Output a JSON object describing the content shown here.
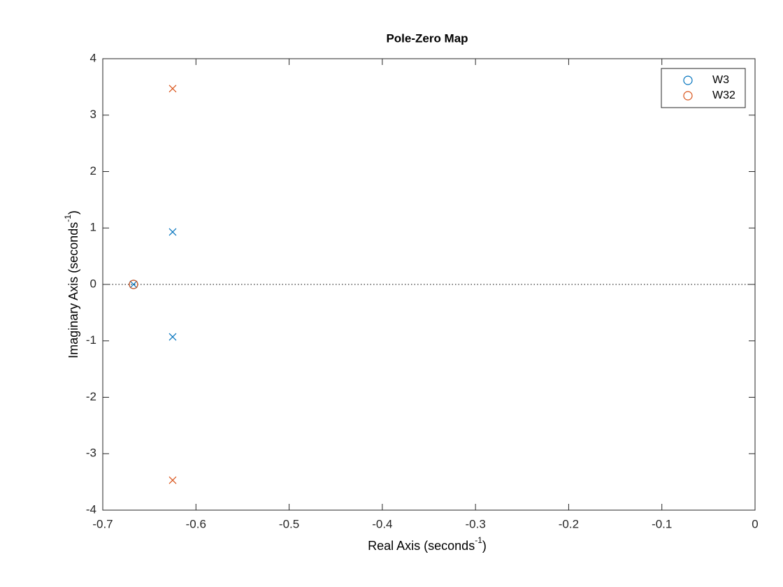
{
  "chart_data": {
    "type": "pole-zero",
    "title": "Pole-Zero Map",
    "xlabel": [
      "Real Axis (seconds",
      "-1",
      ")"
    ],
    "ylabel": [
      "Imaginary Axis (seconds",
      "-1",
      ")"
    ],
    "xlim": [
      -0.7,
      0
    ],
    "ylim": [
      -4,
      4
    ],
    "xticks": [
      -0.7,
      -0.6,
      -0.5,
      -0.4,
      -0.3,
      -0.2,
      -0.1,
      0
    ],
    "yticks": [
      -4,
      -3,
      -2,
      -1,
      0,
      1,
      2,
      3,
      4
    ],
    "legend": "northeast",
    "series": [
      {
        "name": "W3",
        "color": "#0072bd",
        "poles": {
          "x": [
            -0.625,
            -0.625,
            -0.667
          ],
          "y": [
            0.93,
            -0.93,
            0
          ]
        },
        "zeros": {
          "x": [
            -0.667
          ],
          "y": [
            0
          ]
        }
      },
      {
        "name": "W32",
        "color": "#d95319",
        "poles": {
          "x": [
            -0.625,
            -0.625
          ],
          "y": [
            3.47,
            -3.47
          ]
        },
        "zeros": {
          "x": [
            -0.667
          ],
          "y": [
            0
          ]
        }
      }
    ]
  }
}
